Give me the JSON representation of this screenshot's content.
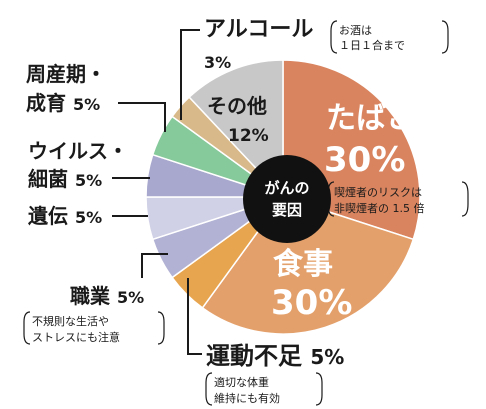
{
  "chart_data": {
    "type": "pie",
    "center_label": [
      "がんの",
      "要因"
    ],
    "slices": [
      {
        "key": "tobacco",
        "label": "たばこ",
        "value": 30,
        "value_text": "30%",
        "color": "#d9845f",
        "note": [
          "喫煙者のリスクは",
          "非喫煙者の 1.5 倍"
        ]
      },
      {
        "key": "diet",
        "label": "食事",
        "value": 30,
        "value_text": "30%",
        "color": "#e4a06a",
        "note": []
      },
      {
        "key": "exercise",
        "label": "運動不足",
        "value": 5,
        "value_text": "5%",
        "color": "#e8a54f",
        "note": [
          "適切な体重",
          "維持にも有効"
        ]
      },
      {
        "key": "occupation",
        "label": "職業",
        "value": 5,
        "value_text": "5%",
        "color": "#b2b2d4",
        "note": [
          "不規則な生活や",
          "ストレスにも注意"
        ]
      },
      {
        "key": "genetics",
        "label": "遺伝",
        "value": 5,
        "value_text": "5%",
        "color": "#d0d0e6",
        "note": []
      },
      {
        "key": "virus",
        "label": "ウイルス・細菌",
        "value": 5,
        "value_text": "5%",
        "color": "#a8a8ce",
        "note": []
      },
      {
        "key": "perinatal",
        "label": "周産期・成育",
        "value": 5,
        "value_text": "5%",
        "color": "#86c99a",
        "note": []
      },
      {
        "key": "alcohol",
        "label": "アルコール",
        "value": 3,
        "value_text": "3%",
        "color": "#d8b98a",
        "note": [
          "お酒は",
          "１日１合まで"
        ]
      },
      {
        "key": "other",
        "label": "その他",
        "value": 12,
        "value_text": "12%",
        "color": "#c8c8c8",
        "note": []
      }
    ],
    "outer_labels": {
      "alcohol": [
        "アルコール"
      ],
      "perinatal": [
        "周産期・",
        "成育 "
      ],
      "virus": [
        "ウイルス・",
        "細菌 "
      ],
      "genetics": [
        "遺伝 "
      ],
      "occupation": [
        "職業 "
      ],
      "exercise": [
        "運動不足 "
      ]
    }
  }
}
